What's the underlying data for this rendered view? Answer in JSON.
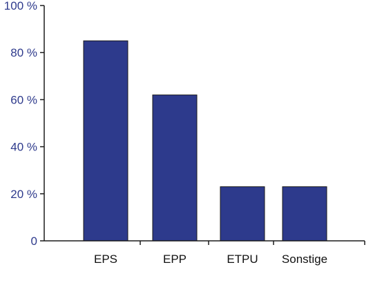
{
  "chart_data": {
    "type": "bar",
    "categories": [
      "EPS",
      "EPP",
      "ETPU",
      "Sonstige"
    ],
    "values": [
      85,
      62,
      23,
      23
    ],
    "ylim": [
      0,
      100
    ],
    "yticks": [
      0,
      20,
      40,
      60,
      80,
      100
    ],
    "ytick_labels": [
      "0",
      "20 %",
      "40 %",
      "60 %",
      "80 %",
      "100 %"
    ],
    "grid": false,
    "bar_color": "#2d3a8c",
    "axis_text_color": "#2e3a8c"
  }
}
